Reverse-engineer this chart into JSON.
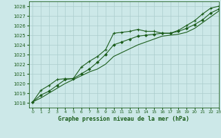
{
  "title": "Graphe pression niveau de la mer (hPa)",
  "bg_color": "#cce8e8",
  "grid_color": "#aacccc",
  "line_color": "#1a5c1a",
  "xlim": [
    -0.5,
    23
  ],
  "ylim": [
    1017.5,
    1028.5
  ],
  "xticks": [
    0,
    1,
    2,
    3,
    4,
    5,
    6,
    7,
    8,
    9,
    10,
    11,
    12,
    13,
    14,
    15,
    16,
    17,
    18,
    19,
    20,
    21,
    22,
    23
  ],
  "yticks": [
    1018,
    1019,
    1020,
    1021,
    1022,
    1023,
    1024,
    1025,
    1026,
    1027,
    1028
  ],
  "hours": [
    0,
    1,
    2,
    3,
    4,
    5,
    6,
    7,
    8,
    9,
    10,
    11,
    12,
    13,
    14,
    15,
    16,
    17,
    18,
    19,
    20,
    21,
    22,
    23
  ],
  "pressure_upper": [
    1018.1,
    1019.3,
    1019.8,
    1020.4,
    1020.5,
    1020.5,
    1021.7,
    1022.3,
    1022.8,
    1023.5,
    1025.2,
    1025.3,
    1025.4,
    1025.6,
    1025.4,
    1025.4,
    1025.2,
    1025.2,
    1025.5,
    1026.0,
    1026.5,
    1027.2,
    1027.8,
    1028.0
  ],
  "pressure_mid": [
    1018.1,
    1018.8,
    1019.2,
    1019.8,
    1020.4,
    1020.5,
    1021.0,
    1021.5,
    1022.2,
    1023.0,
    1024.0,
    1024.3,
    1024.6,
    1024.9,
    1025.0,
    1025.1,
    1025.2,
    1025.2,
    1025.4,
    1025.7,
    1026.1,
    1026.6,
    1027.3,
    1027.7
  ],
  "pressure_lower": [
    1018.1,
    1018.5,
    1019.0,
    1019.5,
    1020.0,
    1020.4,
    1020.8,
    1021.2,
    1021.5,
    1022.0,
    1022.8,
    1023.2,
    1023.6,
    1024.0,
    1024.3,
    1024.6,
    1024.9,
    1025.0,
    1025.1,
    1025.3,
    1025.7,
    1026.3,
    1026.9,
    1027.5
  ]
}
